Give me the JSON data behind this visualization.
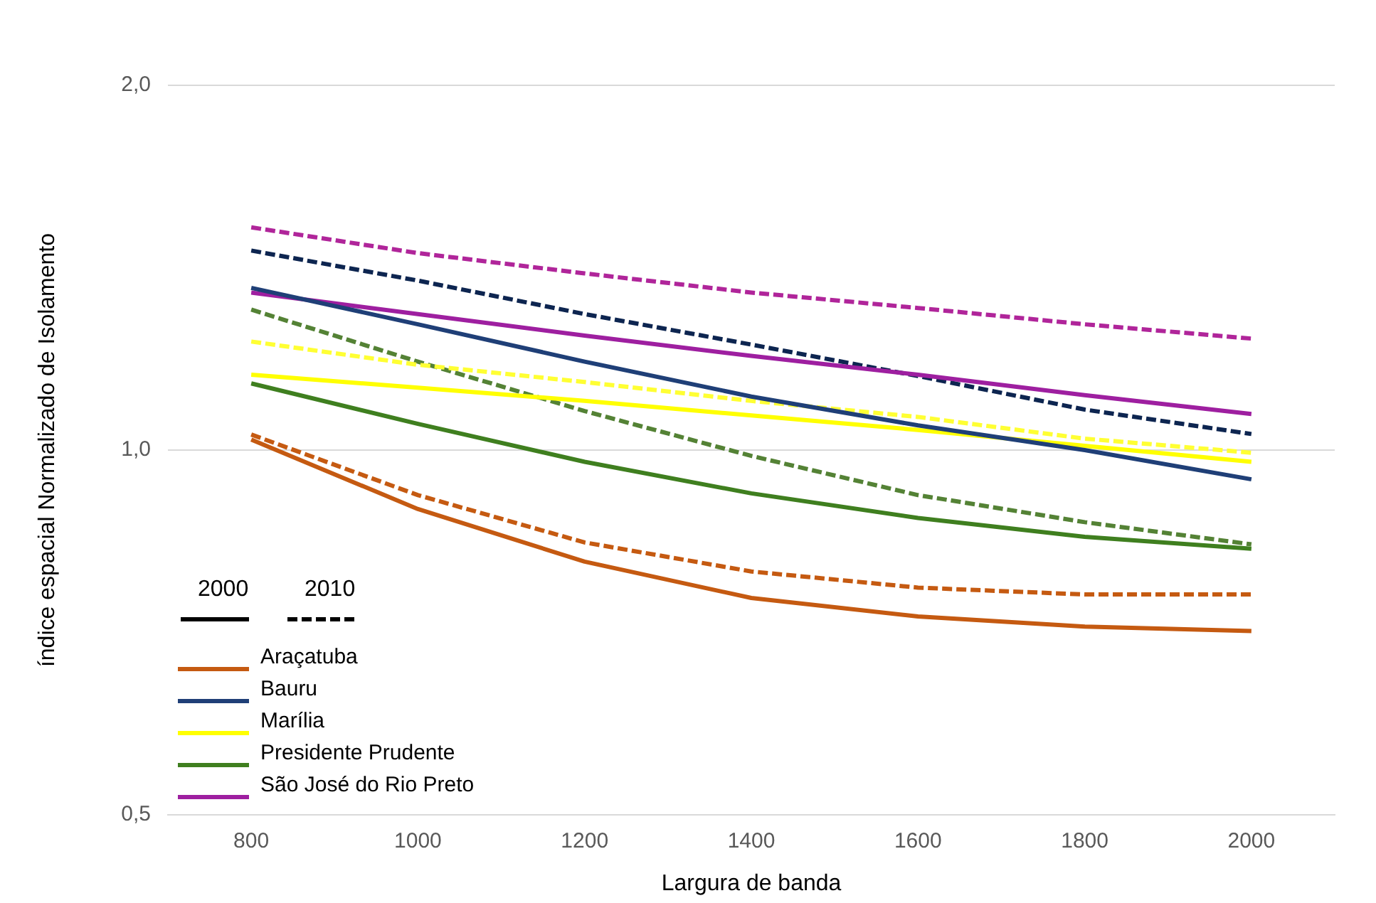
{
  "chart_data": {
    "type": "line",
    "xlabel": "Largura de banda",
    "ylabel": "índice espacial Normalizado de Isolamento",
    "x": [
      800,
      1000,
      1200,
      1400,
      1600,
      1800,
      2000
    ],
    "xlim": [
      700,
      2100
    ],
    "xticks": [
      800,
      1000,
      1200,
      1400,
      1600,
      1800,
      2000
    ],
    "ylim": [
      0.5,
      2.0
    ],
    "yticks": [
      {
        "value": 0.5,
        "label": "0,5"
      },
      {
        "value": 1.0,
        "label": "1,0"
      },
      {
        "value": 2.0,
        "label": "2,0"
      }
    ],
    "log": "y",
    "grid": "y",
    "legend": "bottom left",
    "marker": "none",
    "annotations": [
      "2000",
      "2010"
    ],
    "series": [
      {
        "name": "Araçatuba",
        "color": "#c55a11",
        "line_style": "solid",
        "values": [
          1.02,
          0.894,
          0.809,
          0.755,
          0.729,
          0.715,
          0.709
        ]
      },
      {
        "name": "Bauru",
        "color": "#1f3f77",
        "line_style": "solid",
        "values": [
          1.361,
          1.27,
          1.183,
          1.107,
          1.048,
          1.0,
          0.946
        ]
      },
      {
        "name": "Marília",
        "color": "#ffff00",
        "line_style": "solid",
        "values": [
          1.154,
          1.126,
          1.098,
          1.068,
          1.039,
          1.008,
          0.978
        ]
      },
      {
        "name": "Presidente Prudente",
        "color": "#3f7f1f",
        "line_style": "solid",
        "values": [
          1.135,
          1.051,
          0.978,
          0.921,
          0.879,
          0.848,
          0.829
        ]
      },
      {
        "name": "São José do Rio Preto",
        "color": "#9e1fa0",
        "line_style": "solid",
        "values": [
          1.349,
          1.295,
          1.243,
          1.196,
          1.154,
          1.11,
          1.071
        ]
      },
      {
        "color": "#c55a11",
        "line_style": "dashed",
        "values": [
          1.03,
          0.918,
          0.839,
          0.794,
          0.77,
          0.76,
          0.76
        ]
      },
      {
        "color": "#0d2550",
        "line_style": "dashed",
        "values": [
          1.461,
          1.38,
          1.295,
          1.222,
          1.151,
          1.08,
          1.031
        ]
      },
      {
        "color": "#ffff33",
        "line_style": "dashed",
        "values": [
          1.229,
          1.176,
          1.138,
          1.098,
          1.065,
          1.022,
          0.995
        ]
      },
      {
        "color": "#548235",
        "line_style": "dashed",
        "values": [
          1.306,
          1.183,
          1.077,
          0.989,
          0.918,
          0.872,
          0.836
        ]
      },
      {
        "color": "#b0259a",
        "line_style": "dashed",
        "values": [
          1.527,
          1.454,
          1.399,
          1.349,
          1.31,
          1.27,
          1.236
        ]
      }
    ]
  }
}
